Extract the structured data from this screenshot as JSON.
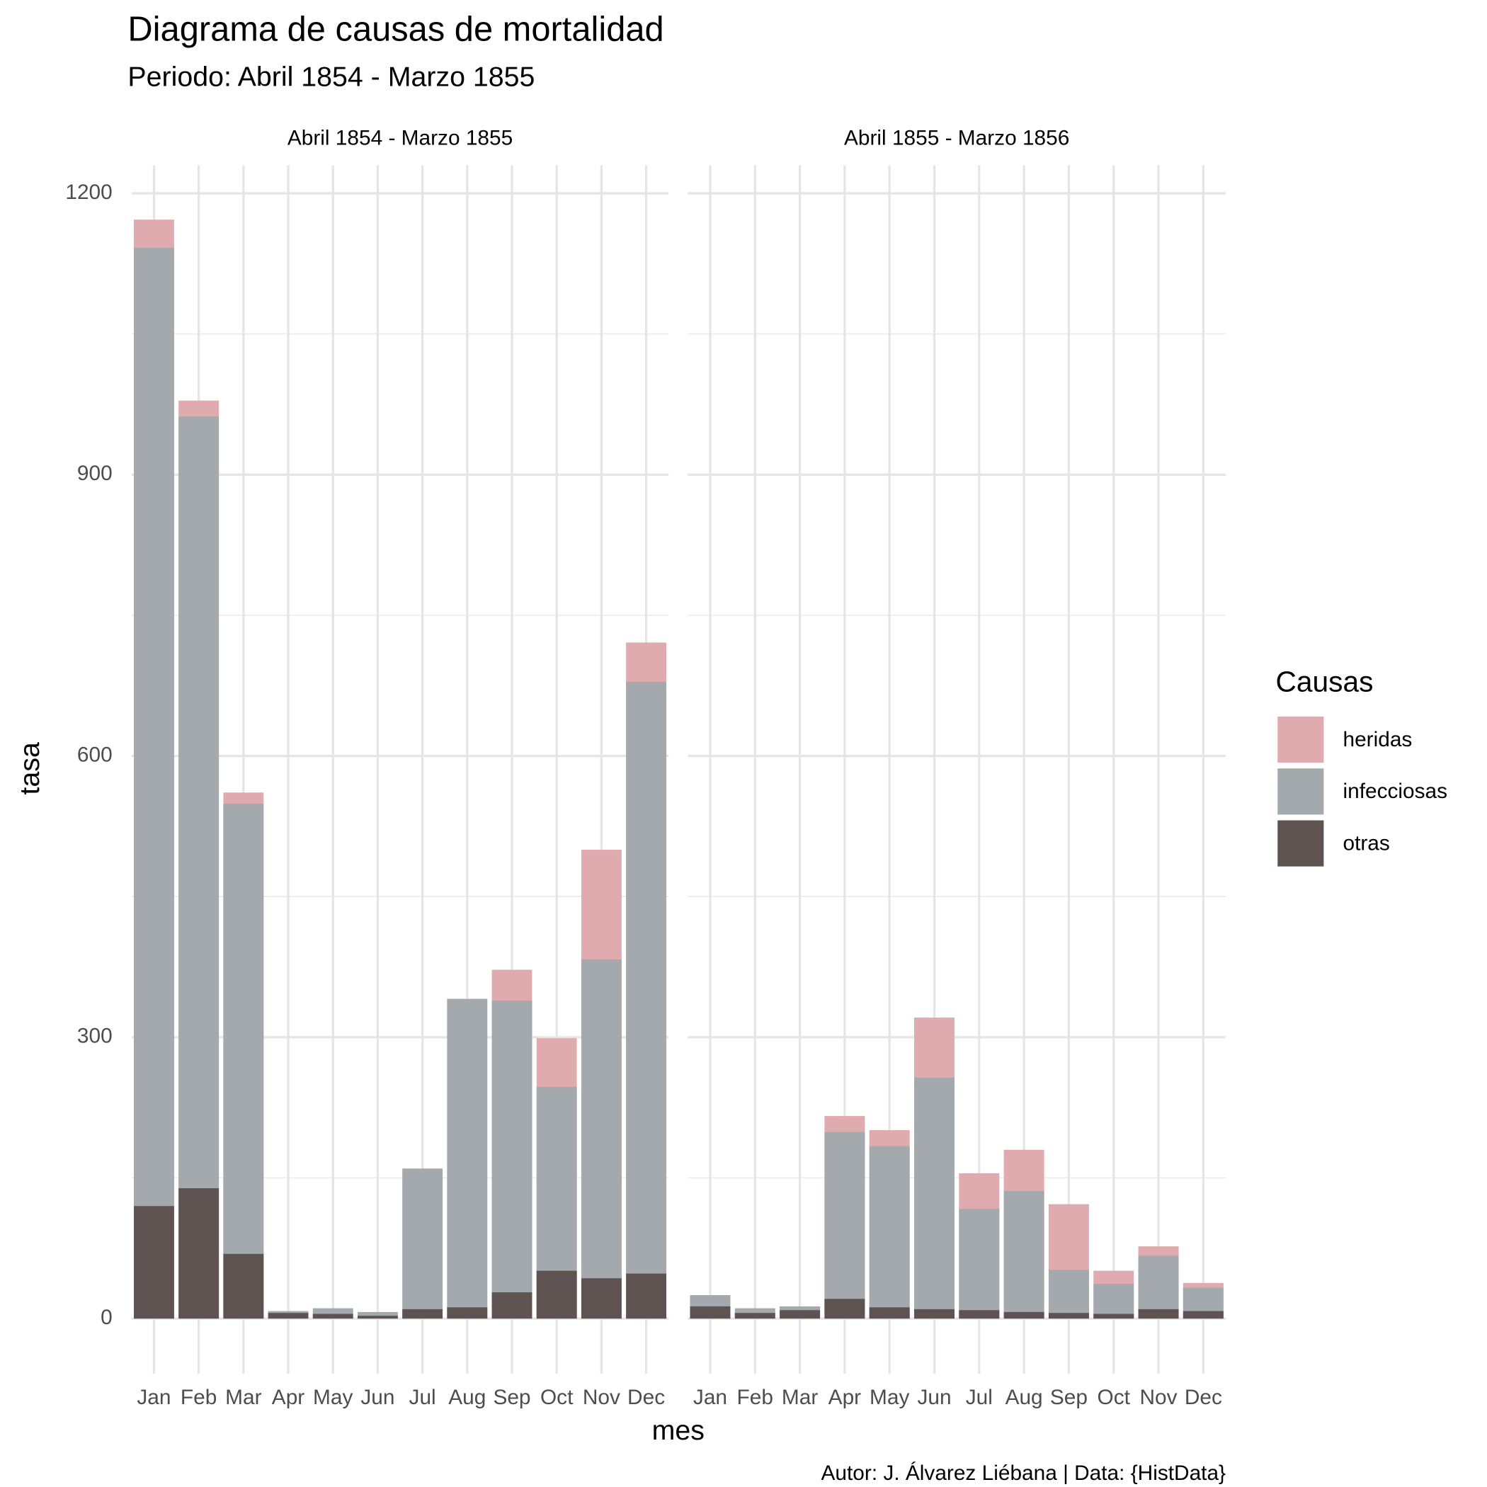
{
  "chart_data": {
    "type": "bar",
    "title": "Diagrama de causas de mortalidad",
    "subtitle": "Periodo: Abril 1854 - Marzo 1855",
    "x_label": "mes",
    "y_label": "tasa",
    "caption": "Autor: J. Álvarez Liébana | Data: {HistData}",
    "legend_title": "Causas",
    "legend_position": "right",
    "ylim": [
      -28,
      1230
    ],
    "yticks": [
      0,
      300,
      600,
      900,
      1200
    ],
    "grid": true,
    "facets": [
      {
        "strip": "Abril 1854 - Marzo 1855",
        "categories": [
          "Jan",
          "Feb",
          "Mar",
          "Apr",
          "May",
          "Jun",
          "Jul",
          "Aug",
          "Sep",
          "Oct",
          "Nov",
          "Dec"
        ],
        "series": [
          {
            "name": "heridas",
            "color": "#dfabae",
            "values": [
              1172,
              979,
              561,
              0,
              0,
              0,
              0,
              0,
              372,
              299,
              500,
              721
            ]
          },
          {
            "name": "infecciosas",
            "color": "#a3a9ac",
            "values": [
              1142,
              962,
              549,
              8,
              11,
              7,
              160,
              341,
              339,
              247,
              383,
              679
            ]
          },
          {
            "name": "otras",
            "color": "#5f5352",
            "values": [
              120,
              139,
              69,
              6,
              5,
              3,
              10,
              12,
              28,
              51,
              43,
              48
            ]
          }
        ]
      },
      {
        "strip": "Abril 1855 - Marzo 1856",
        "categories": [
          "Jan",
          "Feb",
          "Mar",
          "Apr",
          "May",
          "Jun",
          "Jul",
          "Aug",
          "Sep",
          "Oct",
          "Nov",
          "Dec"
        ],
        "series": [
          {
            "name": "heridas",
            "color": "#dfabae",
            "values": [
              0,
              0,
              0,
              216,
              201,
              321,
              155,
              180,
              122,
              51,
              77,
              38
            ]
          },
          {
            "name": "infecciosas",
            "color": "#a3a9ac",
            "values": [
              25,
              11,
              13,
              199,
              184,
              257,
              117,
              136,
              52,
              37,
              67,
              33
            ]
          },
          {
            "name": "otras",
            "color": "#5f5352",
            "values": [
              13,
              6,
              9,
              21,
              12,
              10,
              9,
              7,
              6,
              5,
              10,
              8
            ]
          }
        ]
      }
    ]
  }
}
